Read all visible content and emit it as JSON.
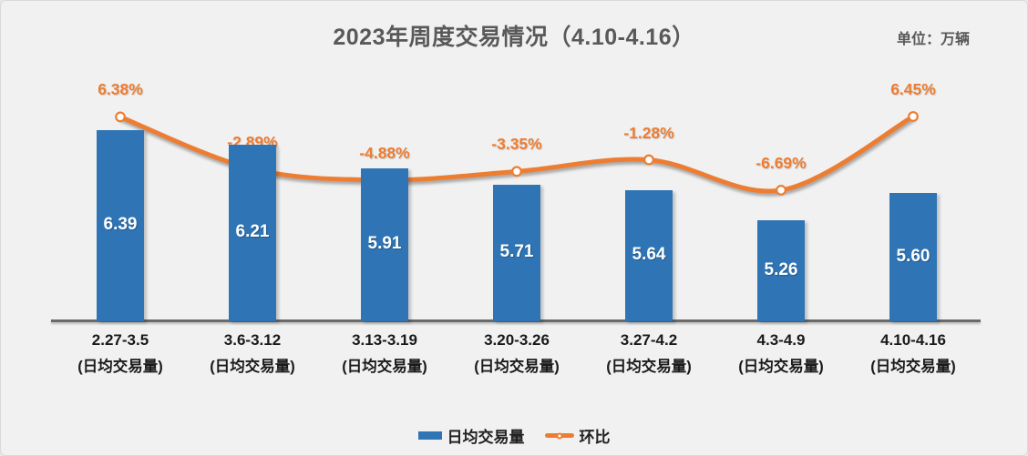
{
  "title": "2023年周度交易情况（4.10-4.16）",
  "unit_label": "单位：万辆",
  "legend": {
    "bar_label": "日均交易量",
    "line_label": "环比"
  },
  "colors": {
    "bar": "#2F75B5",
    "line": "#ED7D31",
    "bar_value_label": "#FFFFFF",
    "title": "#595959",
    "axis_line": "#6A6A6A",
    "category_label": "#1A1A1A",
    "background": "#F1F1F2"
  },
  "chart_data": {
    "type": "bar",
    "title": "2023年周度交易情况（4.10-4.16）",
    "unit": "万辆",
    "categories": [
      "2.27-3.5",
      "3.6-3.12",
      "3.13-3.19",
      "3.20-3.26",
      "3.27-4.2",
      "4.3-4.9",
      "4.10-4.16"
    ],
    "category_sublabel": "(日均交易量)",
    "series": [
      {
        "name": "日均交易量",
        "type": "bar",
        "unit": "万辆",
        "values": [
          6.39,
          6.21,
          5.91,
          5.71,
          5.64,
          5.26,
          5.6
        ],
        "labels": [
          "6.39",
          "6.21",
          "5.91",
          "5.71",
          "5.64",
          "5.26",
          "5.60"
        ],
        "label_position": "inside-center"
      },
      {
        "name": "环比",
        "type": "line",
        "unit": "%",
        "values": [
          6.38,
          -2.89,
          -4.88,
          -3.35,
          -1.28,
          -6.69,
          6.45
        ],
        "labels": [
          "6.38%",
          "-2.89%",
          "-4.88%",
          "-3.35%",
          "-1.28%",
          "-6.69%",
          "6.45%"
        ],
        "label_position": "above",
        "smooth": true,
        "markers": "circle-white-filled"
      }
    ],
    "bar_axis": {
      "min": 4.0,
      "max": 6.8,
      "visible": false
    },
    "line_axis": {
      "visible": false
    },
    "grid": false,
    "legend_position": "bottom",
    "xlabel": "",
    "ylabel": ""
  }
}
